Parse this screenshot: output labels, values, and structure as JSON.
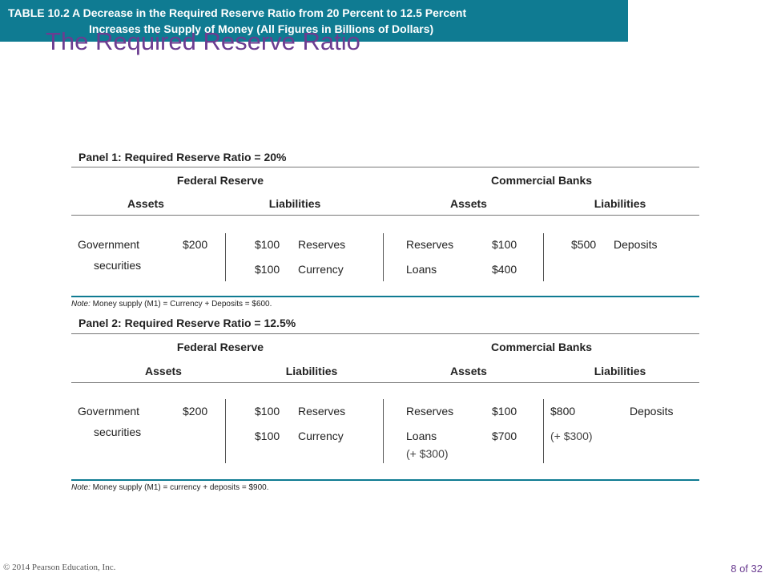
{
  "title": "The Required Reserve Ratio",
  "table": {
    "caption_line1": "TABLE 10.2  A Decrease  in the Required  Reserve  Ratio from 20 Percent to 12.5 Percent",
    "caption_line2": "Increases  the Supply  of Money  (All Figures  in Billions  of Dollars)"
  },
  "panel1": {
    "title": "Panel  1:  Required  Reserve  Ratio = 20%",
    "fed_header": "Federal  Reserve",
    "banks_header": "Commercial  Banks",
    "assets": "Assets",
    "liabilities": "Liabilities",
    "fed_assets_label_1": "Government",
    "fed_assets_label_2": "securities",
    "fed_assets_value": "$200",
    "fed_liab_1_value": "$100",
    "fed_liab_1_label": "Reserves",
    "fed_liab_2_value": "$100",
    "fed_liab_2_label": "Currency",
    "bank_assets_1_label": "Reserves",
    "bank_assets_1_value": "$100",
    "bank_assets_2_label": "Loans",
    "bank_assets_2_value": "$400",
    "bank_liab_value": "$500",
    "bank_liab_label": "Deposits",
    "note_label": "Note:",
    "note_text": " Money supply (M1) = Currency + Deposits = $600."
  },
  "panel2": {
    "title": "Panel  2:  Required  Reserve  Ratio = 12.5%",
    "fed_header": "Federal  Reserve",
    "banks_header": "Commercial  Banks",
    "assets": "Assets",
    "liabilities": "Liabilities",
    "fed_assets_label_1": "Government",
    "fed_assets_label_2": "securities",
    "fed_assets_value": "$200",
    "fed_liab_1_value": "$100",
    "fed_liab_1_label": "Reserves",
    "fed_liab_2_value": "$100",
    "fed_liab_2_label": "Currency",
    "bank_assets_1_label": "Reserves",
    "bank_assets_1_value": "$100",
    "bank_assets_2_label": "Loans",
    "bank_assets_2_sub": "(+ $300)",
    "bank_assets_2_value": "$700",
    "bank_liab_value": "$800",
    "bank_liab_label": "Deposits",
    "bank_liab_sub": "(+ $300)",
    "note_label": "Note:",
    "note_text": " Money supply (M1) = currency + deposits = $900."
  },
  "footer": {
    "copyright": "© 2014 Pearson Education, Inc.",
    "page": "8 of 32"
  }
}
